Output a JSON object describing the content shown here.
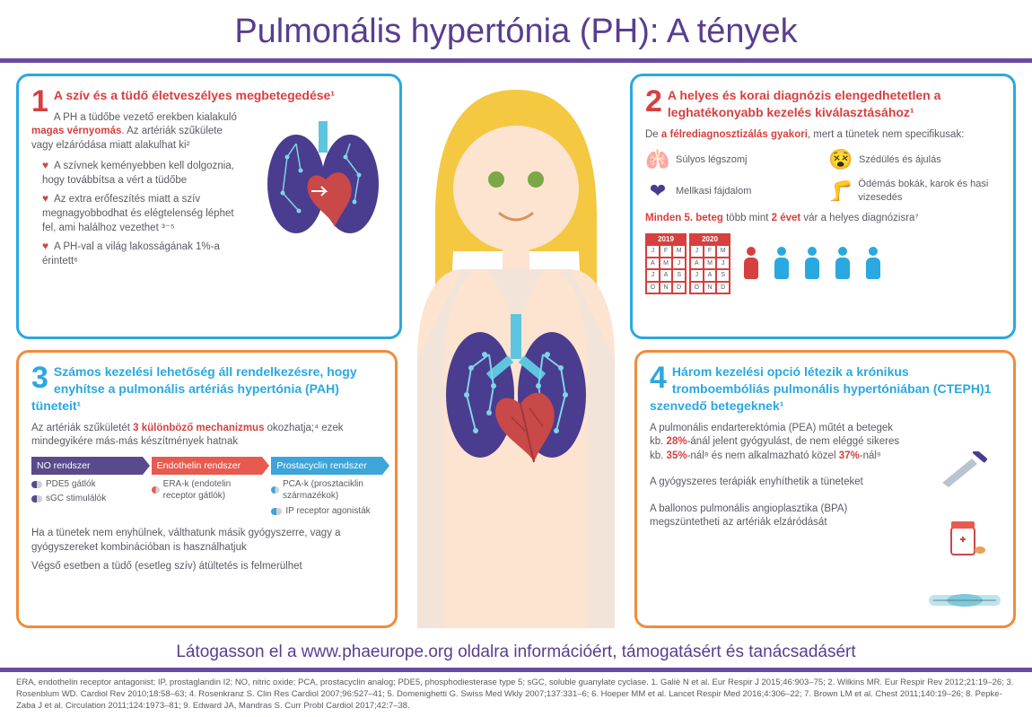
{
  "colors": {
    "primary_purple": "#5a3d8f",
    "bar_purple": "#6b4ba0",
    "blue_border": "#2aa8e0",
    "orange_border": "#f08c3c",
    "red": "#d6403f",
    "text_gray": "#5a5a63",
    "heart_red": "#c94848",
    "cyan_person": "#2aa8e0",
    "s1_bg": "#5a4a8c",
    "s2_bg": "#e85a4f",
    "s3_bg": "#3da5d9"
  },
  "title": "Pulmonális hypertónia (PH): A tények",
  "panel1": {
    "num": "1",
    "title": "A szív és a tüdő életveszélyes megbetegedése¹",
    "intro_a": "A PH a tüdőbe vezető erekben kialakuló ",
    "intro_b": "magas vérnyomás",
    "intro_c": ". Az artériák szűkülete vagy elzáródása miatt alakulhat ki²",
    "bullets": [
      "A szívnek keményebben kell dolgoznia, hogy továbbítsa a vért a tüdőbe",
      "Az extra erőfeszítés miatt a szív megnagyobbodhat és elégtelenség léphet fel, ami halálhoz vezethet ³⁻⁵",
      "A PH-val a világ lakosságának 1%-a érintett⁶"
    ]
  },
  "panel2": {
    "num": "2",
    "title": "A helyes és korai diagnózis elengedhetetlen a leghatékonyabb kezelés kiválasztásához¹",
    "intro_a": "De ",
    "intro_b": "a félrediagnosztizálás gyakori",
    "intro_c": ", mert a tünetek nem specifikusak:",
    "symptoms": [
      {
        "icon": "🫁",
        "label": "Súlyos légszomj"
      },
      {
        "icon": "😵",
        "label": "Szédülés és ájulás"
      },
      {
        "icon": "❤",
        "label": "Mellkasi fájdalom"
      },
      {
        "icon": "🦵",
        "label": "Ödémás bokák, karok és hasi vizesedés"
      }
    ],
    "wait_a": "Minden 5. beteg",
    "wait_b": " több mint ",
    "wait_c": "2 évet",
    "wait_d": " vár a helyes diagnózisra⁷",
    "cal_years": [
      "2019",
      "2020"
    ],
    "cal_months": [
      "J",
      "F",
      "M",
      "A",
      "M",
      "J",
      "J",
      "A",
      "S",
      "O",
      "N",
      "D"
    ]
  },
  "panel3": {
    "num": "3",
    "title": "Számos kezelési lehetőség áll rendelkezésre, hogy enyhítse a pulmonális artériás hypertónia (PAH) tüneteit¹",
    "intro_a": "Az artériák szűkületét ",
    "intro_b": "3 különböző mechanizmus",
    "intro_c": " okozhatja;⁴ ezek mindegyikére más-más készítmények hatnak",
    "systems": [
      {
        "name": "NO rendszer",
        "color": "#5a4a8c",
        "items": [
          "PDE5 gátlók",
          "sGC stimulálók"
        ]
      },
      {
        "name": "Endothelin rendszer",
        "color": "#e85a4f",
        "items": [
          "ERA-k (endotelin receptor gátlók)"
        ]
      },
      {
        "name": "Prostacyclin rendszer",
        "color": "#3da5d9",
        "items": [
          "PCA-k (prosztaciklin származékok)",
          "IP receptor agonisták"
        ]
      }
    ],
    "note1": "Ha a tünetek nem enyhülnek, válthatunk másik gyógyszerre, vagy a gyógyszereket kombinációban is használhatjuk",
    "note2": "Végső esetben a tüdő (esetleg szív) átültetés is felmerülhet"
  },
  "panel4": {
    "num": "4",
    "title": "Három kezelési opció létezik a krónikus tromboembóliás pulmonális hypertóniában  (CTEPH)1 szenvedő betegeknek¹",
    "p1_a": "A pulmonális endarterektómia (PEA) műtét a betegek kb. ",
    "p1_b": "28%",
    "p1_c": "-ánál jelent gyógyulást, de nem eléggé sikeres kb. ",
    "p1_d": "35%",
    "p1_e": "-nál⁸ és nem alkalmazható közel ",
    "p1_f": "37%",
    "p1_g": "-nál⁹",
    "p2": "A gyógyszeres terápiák enyhíthetik a tüneteket",
    "p3": "A ballonos pulmonális angioplasztika (BPA) megszüntetheti az artériák elzáródását"
  },
  "cta": "Látogasson el a www.phaeurope.org oldalra információért, támogatásért és tanácsadásért",
  "refs": "ERA, endothelin receptor antagonist; IP, prostaglandin I2; NO, nitric oxide; PCA, prostacyclin analog; PDE5, phosphodiesterase type 5; sGC, soluble guanylate cyclase. 1. Galiè N et al. Eur Respir J 2015;46:903–75; 2. Wilkins MR. Eur Respir Rev 2012;21:19–26; 3. Rosenblum WD. Cardiol Rev 2010;18:58–63; 4. Rosenkranz S. Clin Res Cardiol 2007;96:527–41; 5. Domenighetti G. Swiss Med Wkly 2007;137:331–6; 6. Hoeper MM et al. Lancet Respir Med 2016;4:306–22; 7. Brown LM et al. Chest 2011;140:19–26; 8. Pepke-Zaba J et al. Circulation 2011;124:1973–81; 9. Edward JA, Mandras S. Curr Probl Cardiol 2017;42:7–38."
}
